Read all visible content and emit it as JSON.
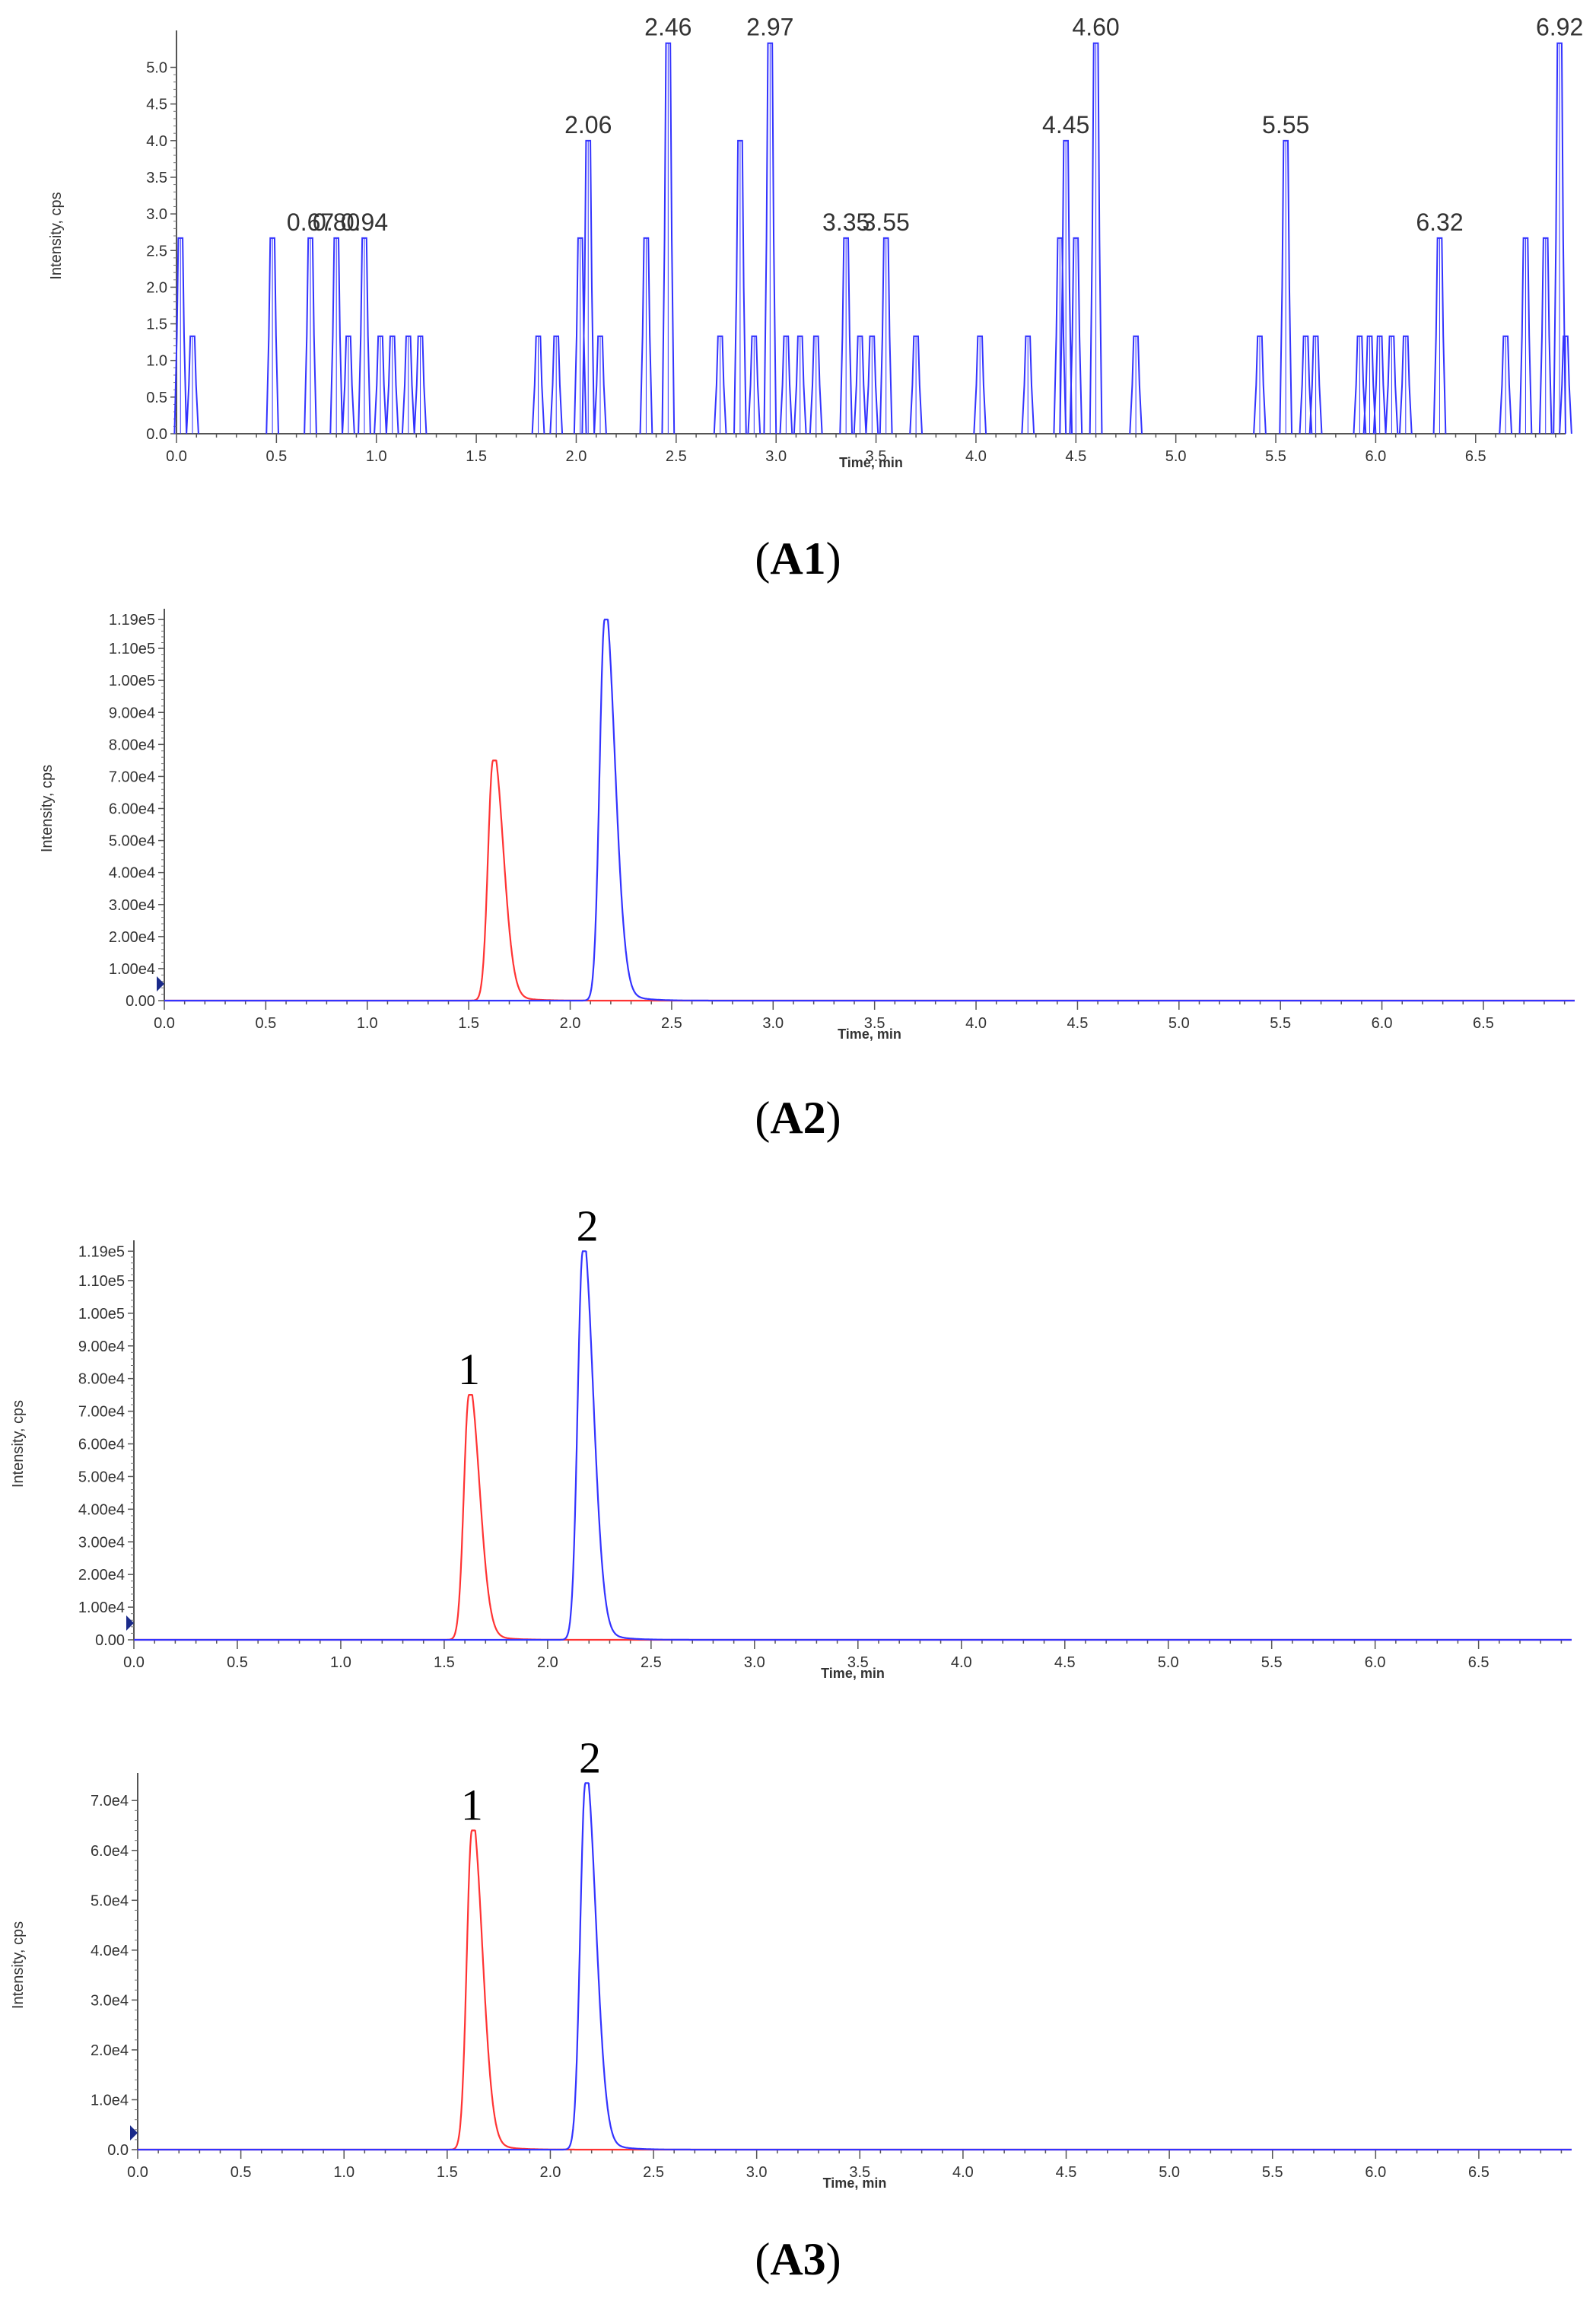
{
  "panel_labels": [
    "A1",
    "A2",
    "A3"
  ],
  "chart_data": [
    {
      "id": "A1",
      "type": "line",
      "title": "",
      "xlabel": "Time, min",
      "ylabel": "Intensity, cps",
      "xlim": [
        0,
        6.95
      ],
      "ylim": [
        0,
        5.4
      ],
      "x_ticks": [
        "0.0",
        "0.5",
        "1.0",
        "1.5",
        "2.0",
        "2.5",
        "3.0",
        "3.5",
        "4.0",
        "4.5",
        "5.0",
        "5.5",
        "6.0",
        "6.5"
      ],
      "y_ticks": [
        "0.0",
        "0.5",
        "1.0",
        "1.5",
        "2.0",
        "2.5",
        "3.0",
        "3.5",
        "4.0",
        "4.5",
        "5.0"
      ],
      "annotations": [
        {
          "text": "0.67",
          "x": 0.67,
          "y": 2.67
        },
        {
          "text": "0.80",
          "x": 0.8,
          "y": 2.67
        },
        {
          "text": "0.94",
          "x": 0.94,
          "y": 2.67
        },
        {
          "text": "2.06",
          "x": 2.06,
          "y": 4.0
        },
        {
          "text": "2.46",
          "x": 2.46,
          "y": 5.33
        },
        {
          "text": "2.97",
          "x": 2.97,
          "y": 5.33
        },
        {
          "text": "3.35",
          "x": 3.35,
          "y": 2.67
        },
        {
          "text": "3.55",
          "x": 3.55,
          "y": 2.67
        },
        {
          "text": "4.45",
          "x": 4.45,
          "y": 4.0
        },
        {
          "text": "4.60",
          "x": 4.6,
          "y": 5.33
        },
        {
          "text": "5.55",
          "x": 5.55,
          "y": 4.0
        },
        {
          "text": "6.32",
          "x": 6.32,
          "y": 2.67
        },
        {
          "text": "6.92",
          "x": 6.92,
          "y": 5.33
        }
      ],
      "series": [
        {
          "color": "#3333ff",
          "peaks": [
            [
              0.02,
              2.67
            ],
            [
              0.08,
              1.33
            ],
            [
              0.48,
              2.67
            ],
            [
              0.67,
              2.67
            ],
            [
              0.8,
              2.67
            ],
            [
              0.86,
              1.33
            ],
            [
              0.94,
              2.67
            ],
            [
              1.02,
              1.33
            ],
            [
              1.08,
              1.33
            ],
            [
              1.16,
              1.33
            ],
            [
              1.22,
              1.33
            ],
            [
              1.81,
              1.33
            ],
            [
              1.9,
              1.33
            ],
            [
              2.02,
              2.67
            ],
            [
              2.06,
              4.0
            ],
            [
              2.12,
              1.33
            ],
            [
              2.35,
              2.67
            ],
            [
              2.46,
              5.33
            ],
            [
              2.72,
              1.33
            ],
            [
              2.82,
              4.0
            ],
            [
              2.89,
              1.33
            ],
            [
              2.97,
              5.33
            ],
            [
              3.05,
              1.33
            ],
            [
              3.12,
              1.33
            ],
            [
              3.2,
              1.33
            ],
            [
              3.35,
              2.67
            ],
            [
              3.42,
              1.33
            ],
            [
              3.48,
              1.33
            ],
            [
              3.55,
              2.67
            ],
            [
              3.7,
              1.33
            ],
            [
              4.02,
              1.33
            ],
            [
              4.26,
              1.33
            ],
            [
              4.42,
              2.67
            ],
            [
              4.45,
              4.0
            ],
            [
              4.5,
              2.67
            ],
            [
              4.6,
              5.33
            ],
            [
              4.8,
              1.33
            ],
            [
              5.42,
              1.33
            ],
            [
              5.55,
              4.0
            ],
            [
              5.65,
              1.33
            ],
            [
              5.7,
              1.33
            ],
            [
              5.92,
              1.33
            ],
            [
              5.97,
              1.33
            ],
            [
              6.02,
              1.33
            ],
            [
              6.08,
              1.33
            ],
            [
              6.15,
              1.33
            ],
            [
              6.32,
              2.67
            ],
            [
              6.65,
              1.33
            ],
            [
              6.75,
              2.67
            ],
            [
              6.85,
              2.67
            ],
            [
              6.92,
              5.33
            ],
            [
              6.95,
              1.33
            ]
          ]
        }
      ]
    },
    {
      "id": "A2",
      "type": "line",
      "title": "",
      "xlabel": "Time, min",
      "ylabel": "Intensity, cps",
      "xlim": [
        0,
        6.95
      ],
      "ylim": [
        0,
        120000
      ],
      "x_ticks": [
        "0.0",
        "0.5",
        "1.0",
        "1.5",
        "2.0",
        "2.5",
        "3.0",
        "3.5",
        "4.0",
        "4.5",
        "5.0",
        "5.5",
        "6.0",
        "6.5"
      ],
      "y_ticks": [
        "0.00",
        "1.00e4",
        "2.00e4",
        "3.00e4",
        "4.00e4",
        "5.00e4",
        "6.00e4",
        "7.00e4",
        "8.00e4",
        "9.00e4",
        "1.00e5",
        "1.10e5",
        "1.19e5"
      ],
      "peak_labels": [],
      "series": [
        {
          "color": "#ff3333",
          "peak_x": 1.62,
          "peak_y": 75000
        },
        {
          "color": "#3333ff",
          "peak_x": 2.17,
          "peak_y": 119000
        }
      ]
    },
    {
      "id": "A3-top",
      "type": "line",
      "title": "",
      "xlabel": "Time, min",
      "ylabel": "Intensity, cps",
      "xlim": [
        0,
        6.95
      ],
      "ylim": [
        0,
        120000
      ],
      "x_ticks": [
        "0.0",
        "0.5",
        "1.0",
        "1.5",
        "2.0",
        "2.5",
        "3.0",
        "3.5",
        "4.0",
        "4.5",
        "5.0",
        "5.5",
        "6.0",
        "6.5"
      ],
      "y_ticks": [
        "0.00",
        "1.00e4",
        "2.00e4",
        "3.00e4",
        "4.00e4",
        "5.00e4",
        "6.00e4",
        "7.00e4",
        "8.00e4",
        "9.00e4",
        "1.00e5",
        "1.10e5",
        "1.19e5"
      ],
      "peak_labels": [
        "1",
        "2"
      ],
      "series": [
        {
          "color": "#ff3333",
          "peak_x": 1.62,
          "peak_y": 75000
        },
        {
          "color": "#3333ff",
          "peak_x": 2.17,
          "peak_y": 119000
        }
      ]
    },
    {
      "id": "A3-bottom",
      "type": "line",
      "title": "",
      "xlabel": "Time, min",
      "ylabel": "Intensity, cps",
      "xlim": [
        0,
        6.95
      ],
      "ylim": [
        0,
        74000
      ],
      "x_ticks": [
        "0.0",
        "0.5",
        "1.0",
        "1.5",
        "2.0",
        "2.5",
        "3.0",
        "3.5",
        "4.0",
        "4.5",
        "5.0",
        "5.5",
        "6.0",
        "6.5"
      ],
      "y_ticks": [
        "0.0",
        "1.0e4",
        "2.0e4",
        "3.0e4",
        "4.0e4",
        "5.0e4",
        "6.0e4",
        "7.0e4"
      ],
      "peak_labels": [
        "1",
        "2"
      ],
      "series": [
        {
          "color": "#ff3333",
          "peak_x": 1.62,
          "peak_y": 64000
        },
        {
          "color": "#3333ff",
          "peak_x": 2.17,
          "peak_y": 73500
        }
      ]
    }
  ]
}
